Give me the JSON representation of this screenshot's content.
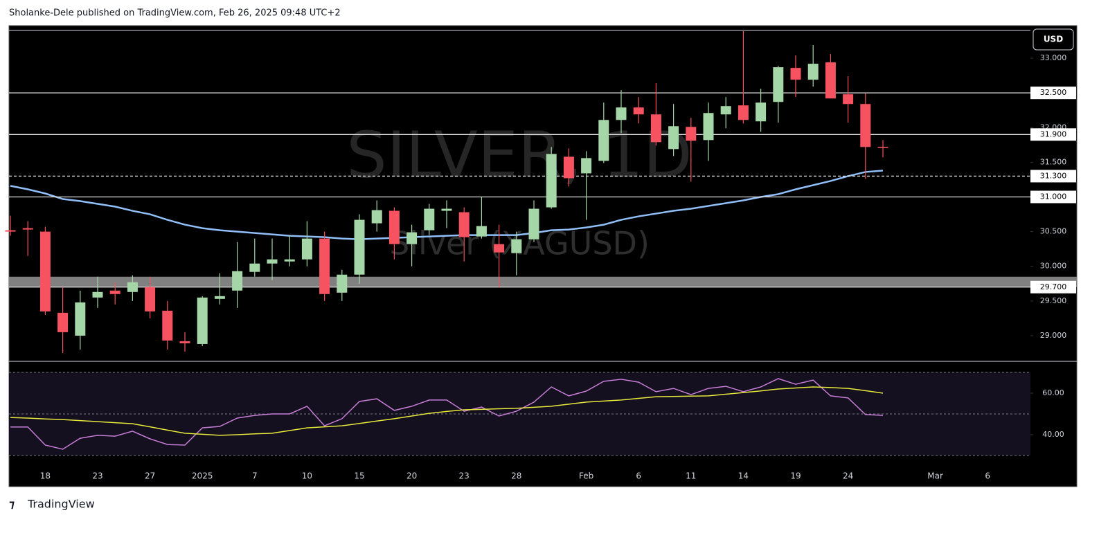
{
  "header": {
    "text": "Sholanke-Dele published on TradingView.com, Feb 26, 2025 09:48 UTC+2"
  },
  "footer": {
    "brand": "TradingView"
  },
  "chart_data": [
    {
      "type": "candlestick",
      "watermark": "SILVER, 1D",
      "watermark_subtitle": "Silver (XAGUSD)",
      "currency": "USD",
      "categories": [
        null,
        null,
        "18",
        null,
        null,
        "23",
        null,
        null,
        "27",
        null,
        null,
        "2025",
        null,
        null,
        "7",
        null,
        null,
        "10",
        null,
        null,
        "15",
        null,
        null,
        "20",
        null,
        null,
        "23",
        null,
        null,
        "28",
        null,
        null,
        null,
        "Feb",
        null,
        null,
        "6",
        null,
        null,
        "11",
        null,
        null,
        "14",
        null,
        null,
        "19",
        null,
        null,
        "24",
        null,
        null,
        null,
        null,
        "Mar",
        null,
        null,
        "6"
      ],
      "open": [
        30.52,
        30.55,
        30.5,
        29.33,
        29.0,
        29.55,
        29.65,
        29.63,
        29.7,
        29.36,
        28.92,
        28.88,
        29.53,
        29.65,
        29.92,
        30.04,
        30.07,
        30.1,
        30.4,
        29.62,
        29.88,
        30.62,
        30.8,
        30.32,
        30.52,
        30.8,
        30.78,
        30.43,
        30.32,
        30.19,
        30.39,
        30.85,
        31.58,
        31.34,
        31.52,
        32.11,
        32.29,
        32.19,
        31.69,
        32.01,
        31.82,
        32.19,
        32.32,
        32.09,
        32.37,
        32.86,
        32.69,
        32.94,
        32.48,
        32.34,
        31.72,
        null,
        null,
        null,
        null,
        null,
        null
      ],
      "high": [
        30.73,
        30.65,
        30.57,
        29.7,
        29.65,
        29.85,
        29.77,
        29.87,
        29.85,
        29.5,
        29.05,
        29.57,
        29.9,
        30.35,
        30.4,
        30.4,
        30.45,
        30.65,
        30.5,
        29.95,
        30.75,
        30.95,
        30.85,
        30.6,
        30.9,
        30.95,
        30.85,
        31.0,
        30.6,
        30.5,
        30.95,
        31.72,
        31.7,
        31.66,
        32.36,
        32.54,
        32.44,
        32.64,
        32.34,
        32.14,
        32.36,
        32.44,
        33.39,
        32.56,
        32.89,
        33.04,
        33.19,
        33.06,
        32.74,
        32.49,
        31.82,
        null,
        null,
        null,
        null,
        null,
        null
      ],
      "low": [
        30.44,
        30.15,
        29.3,
        28.75,
        28.8,
        29.4,
        29.45,
        29.5,
        29.25,
        28.8,
        28.77,
        28.85,
        29.45,
        29.4,
        29.85,
        29.8,
        30.0,
        30.0,
        29.5,
        29.5,
        29.75,
        30.5,
        30.1,
        30.0,
        30.45,
        30.55,
        30.07,
        30.4,
        29.7,
        29.87,
        30.35,
        30.83,
        31.15,
        30.67,
        31.49,
        31.92,
        32.06,
        31.74,
        31.59,
        31.22,
        31.52,
        31.99,
        32.06,
        31.94,
        32.07,
        32.44,
        32.59,
        32.42,
        32.07,
        31.26,
        31.57,
        null,
        null,
        null,
        null,
        null,
        null
      ],
      "close": [
        30.5,
        30.53,
        29.35,
        29.05,
        29.48,
        29.63,
        29.6,
        29.77,
        29.35,
        28.93,
        28.89,
        29.55,
        29.57,
        29.93,
        30.04,
        30.1,
        30.1,
        30.4,
        29.6,
        29.88,
        30.67,
        30.81,
        30.32,
        30.49,
        30.83,
        30.83,
        30.42,
        30.58,
        30.2,
        30.39,
        30.83,
        31.62,
        31.27,
        31.56,
        32.11,
        32.29,
        32.19,
        31.79,
        32.02,
        31.81,
        32.21,
        32.31,
        32.11,
        32.36,
        32.87,
        32.69,
        32.92,
        32.42,
        32.34,
        31.72,
        31.71,
        null,
        null,
        null,
        null,
        null,
        null
      ],
      "up_color": "#a5d6a7",
      "down_color": "#f7525f",
      "lines": [
        {
          "color": "#90bff9",
          "values": [
            31.16,
            31.11,
            31.05,
            30.97,
            30.94,
            30.9,
            30.86,
            30.8,
            30.75,
            30.67,
            30.6,
            30.55,
            30.52,
            30.5,
            30.48,
            30.46,
            30.44,
            30.43,
            30.42,
            30.4,
            30.39,
            30.4,
            30.41,
            30.42,
            30.43,
            30.44,
            30.45,
            30.45,
            30.45,
            30.45,
            30.48,
            30.52,
            30.53,
            30.56,
            30.6,
            30.67,
            30.72,
            30.76,
            30.8,
            30.83,
            30.87,
            30.91,
            30.95,
            31.0,
            31.04,
            31.11,
            31.17,
            31.23,
            31.3,
            31.36,
            31.38,
            null,
            null,
            null,
            null,
            null,
            null
          ]
        }
      ],
      "levels": [
        {
          "value": 32.5,
          "label": "32.500",
          "style": "solid"
        },
        {
          "value": 31.9,
          "label": "31.900",
          "style": "solid"
        },
        {
          "value": 31.3,
          "label": "31.300",
          "style": "dashed"
        },
        {
          "value": 31.0,
          "label": "31.000",
          "style": "solid"
        },
        {
          "value": 29.7,
          "label": "29.700",
          "style": "solid"
        }
      ],
      "zones": [
        {
          "from": 29.7,
          "to": 29.85,
          "color": "#808080"
        }
      ],
      "ylim": [
        28.63,
        33.44
      ],
      "yticks": [
        {
          "value": 29,
          "label": "29.000"
        },
        {
          "value": 29.5,
          "label": "29.500"
        },
        {
          "value": 30,
          "label": "30.000"
        },
        {
          "value": 30.5,
          "label": "30.500"
        },
        {
          "value": 31.5,
          "label": "31.500"
        },
        {
          "value": 32,
          "label": "32.000"
        },
        {
          "value": 33,
          "label": "33.000"
        }
      ]
    },
    {
      "type": "line",
      "series": [
        {
          "color": "#c77dd6",
          "values": [
            43.7,
            43.7,
            35.0,
            33.0,
            38.3,
            39.7,
            39.3,
            41.7,
            38.0,
            35.3,
            35.0,
            43.3,
            44.0,
            48.0,
            49.3,
            50.0,
            50.0,
            53.7,
            44.3,
            47.7,
            56.0,
            57.3,
            51.7,
            53.7,
            56.7,
            56.7,
            51.3,
            53.3,
            49.0,
            51.3,
            55.7,
            63.0,
            58.7,
            61.0,
            65.7,
            66.7,
            65.3,
            60.7,
            62.3,
            59.3,
            62.3,
            63.3,
            60.7,
            63.0,
            67.0,
            64.3,
            66.3,
            58.7,
            57.7,
            49.7,
            49.3,
            null,
            null,
            null,
            null,
            null,
            null
          ]
        },
        {
          "color": "#e8ea3c",
          "values": [
            48.3,
            48.0,
            47.6,
            47.3,
            46.8,
            46.3,
            45.8,
            45.3,
            43.8,
            42.2,
            40.7,
            40.2,
            39.7,
            40.0,
            40.4,
            40.7,
            42.0,
            43.3,
            43.8,
            44.3,
            45.4,
            46.6,
            47.7,
            49.0,
            50.3,
            51.2,
            52.0,
            52.2,
            52.5,
            52.7,
            53.2,
            53.7,
            54.7,
            55.7,
            56.2,
            56.7,
            57.5,
            58.3,
            58.4,
            58.6,
            58.7,
            59.5,
            60.3,
            61.1,
            62.0,
            62.5,
            63.0,
            62.7,
            62.3,
            61.2,
            60.0,
            null,
            null,
            null,
            null,
            null,
            null
          ]
        }
      ],
      "bands": [
        70,
        50,
        30
      ],
      "band_fill": "#14101f",
      "ylim": [
        26,
        74.33
      ],
      "yticks": [
        {
          "value": 60,
          "label": "60.00"
        },
        {
          "value": 40,
          "label": "40.00"
        }
      ]
    }
  ]
}
